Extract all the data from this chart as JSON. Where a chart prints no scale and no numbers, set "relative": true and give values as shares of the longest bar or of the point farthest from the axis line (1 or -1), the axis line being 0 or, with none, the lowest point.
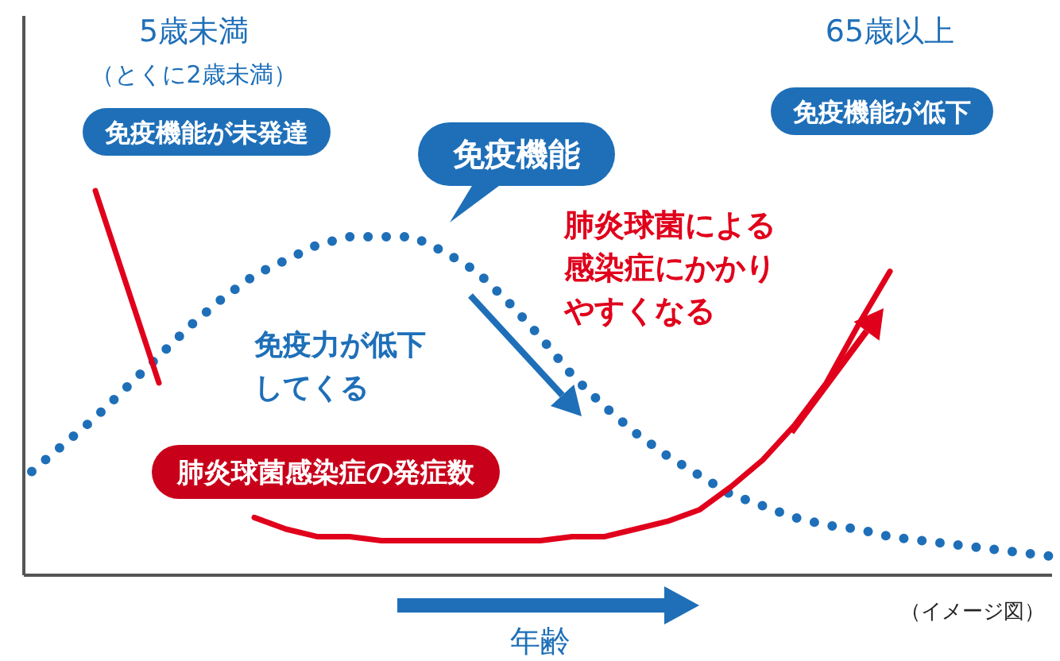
{
  "chart_data": {
    "type": "line",
    "relative": true,
    "categories": [
      null,
      null,
      null,
      null,
      null,
      null,
      null,
      null,
      null,
      null,
      null,
      null,
      null,
      null,
      null,
      null,
      null,
      null,
      null,
      null,
      null,
      null,
      null,
      null,
      null,
      null,
      null,
      null,
      null,
      null,
      null,
      null,
      null
    ],
    "series": [
      {
        "name": "免疫機能",
        "color": "#1e6fb8",
        "line_style": "dotted",
        "values": [
          0.27,
          0.34,
          0.41,
          0.49,
          0.57,
          0.65,
          0.72,
          0.78,
          0.82,
          0.86,
          0.88,
          0.88,
          0.88,
          0.84,
          0.79,
          0.71,
          0.62,
          0.52,
          0.44,
          0.37,
          0.31,
          0.26,
          0.21,
          0.18,
          0.15,
          0.13,
          0.12,
          0.1,
          0.09,
          0.08,
          0.07,
          0.06,
          0.05
        ]
      },
      {
        "name": "肺炎球菌感染症の発症数",
        "color": "#e0001b",
        "line_style": "solid",
        "values": [
          null,
          null,
          1.0,
          0.75,
          0.5,
          null,
          null,
          0.15,
          0.12,
          0.1,
          0.1,
          0.09,
          0.09,
          0.09,
          0.09,
          0.09,
          0.09,
          0.1,
          0.1,
          0.12,
          0.14,
          0.17,
          0.23,
          0.3,
          0.39,
          0.5,
          0.65,
          0.79,
          null,
          null,
          null,
          null,
          null
        ]
      }
    ],
    "xlabel": "年齢",
    "annotations": [
      "5歳未満",
      "（とくに2歳未満）",
      "免疫機能が未発達",
      "65歳以上",
      "免疫機能が低下",
      "肺炎球菌による感染症にかかりやすくなる",
      "免疫力が低下してくる",
      "（イメージ図）"
    ]
  }
}
